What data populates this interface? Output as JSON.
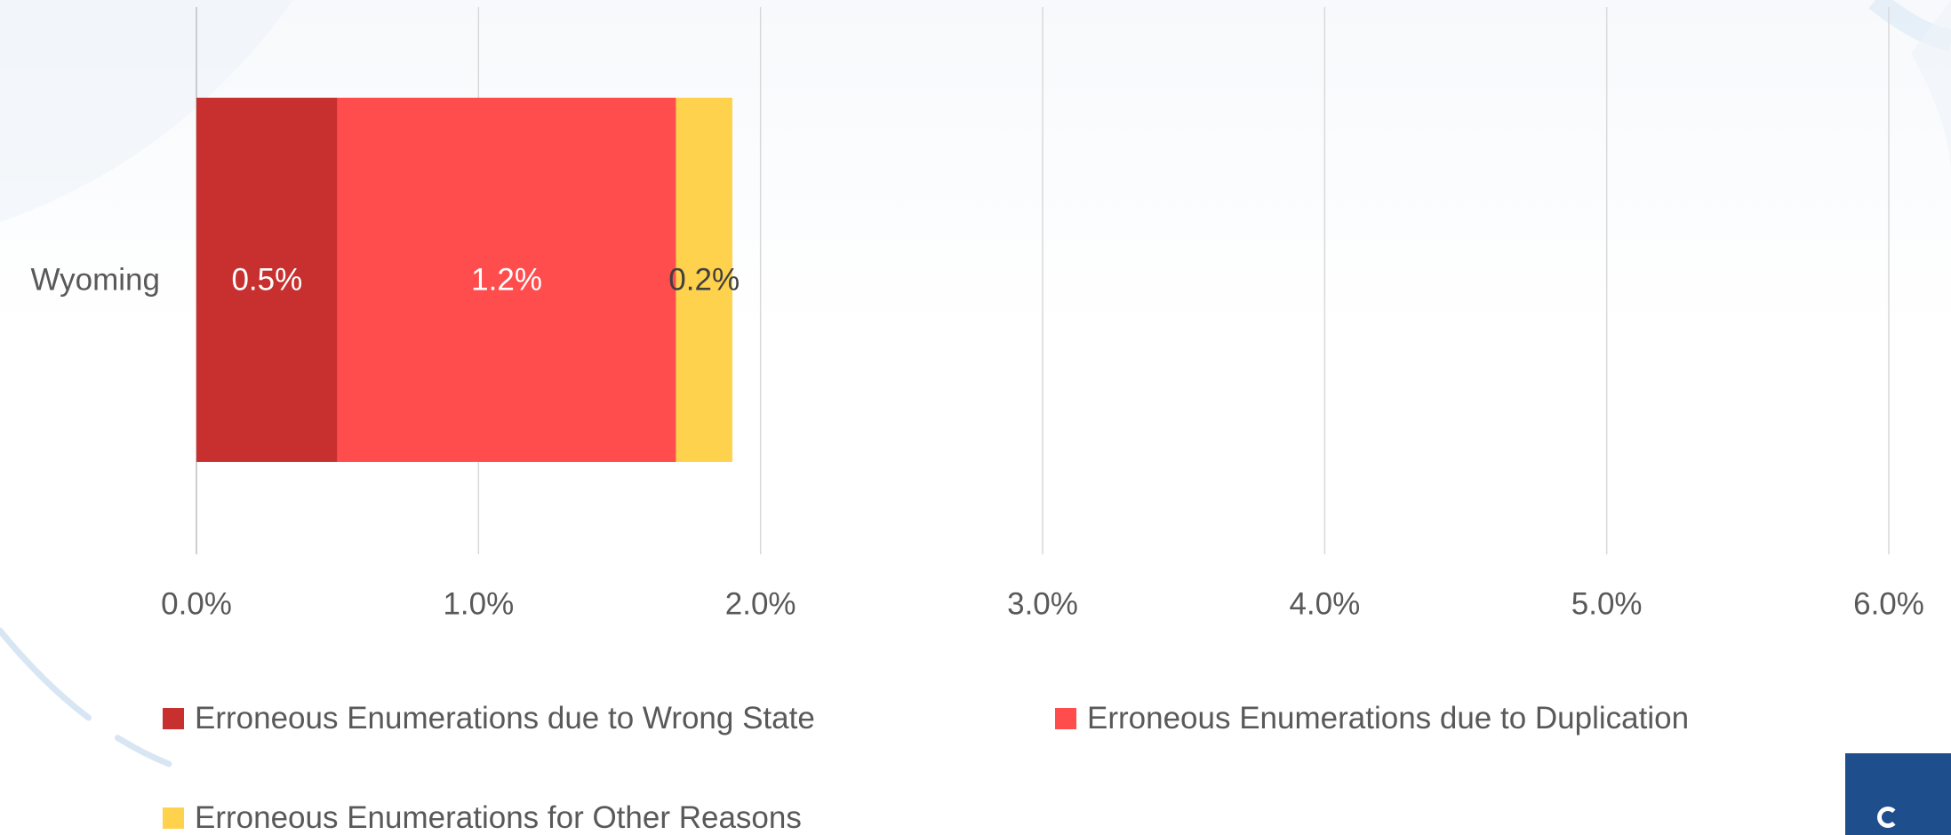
{
  "chart_data": {
    "type": "bar",
    "orientation": "horizontal",
    "stacked": true,
    "categories": [
      "Wyoming"
    ],
    "series": [
      {
        "name": "Erroneous Enumerations due to Wrong State",
        "values": [
          0.5
        ],
        "labels": [
          "0.5%"
        ],
        "color": "#c83030",
        "label_color": "#ffffff"
      },
      {
        "name": "Erroneous Enumerations due to Duplication",
        "values": [
          1.2
        ],
        "labels": [
          "1.2%"
        ],
        "color": "#ff4d4d",
        "label_color": "#ffffff"
      },
      {
        "name": "Erroneous Enumerations for Other Reasons",
        "values": [
          0.2
        ],
        "labels": [
          "0.2%"
        ],
        "color": "#ffd24d",
        "label_color": "#404040"
      }
    ],
    "xlim": [
      0,
      6
    ],
    "x_ticks": [
      0,
      1,
      2,
      3,
      4,
      5,
      6
    ],
    "x_tick_labels": [
      "0.0%",
      "1.0%",
      "2.0%",
      "3.0%",
      "4.0%",
      "5.0%",
      "6.0%"
    ],
    "grid": "vertical",
    "legend_position": "bottom"
  },
  "colors": {
    "gridline": "#d9d9d9",
    "text": "#595959",
    "logo": "#1f4e8c"
  }
}
